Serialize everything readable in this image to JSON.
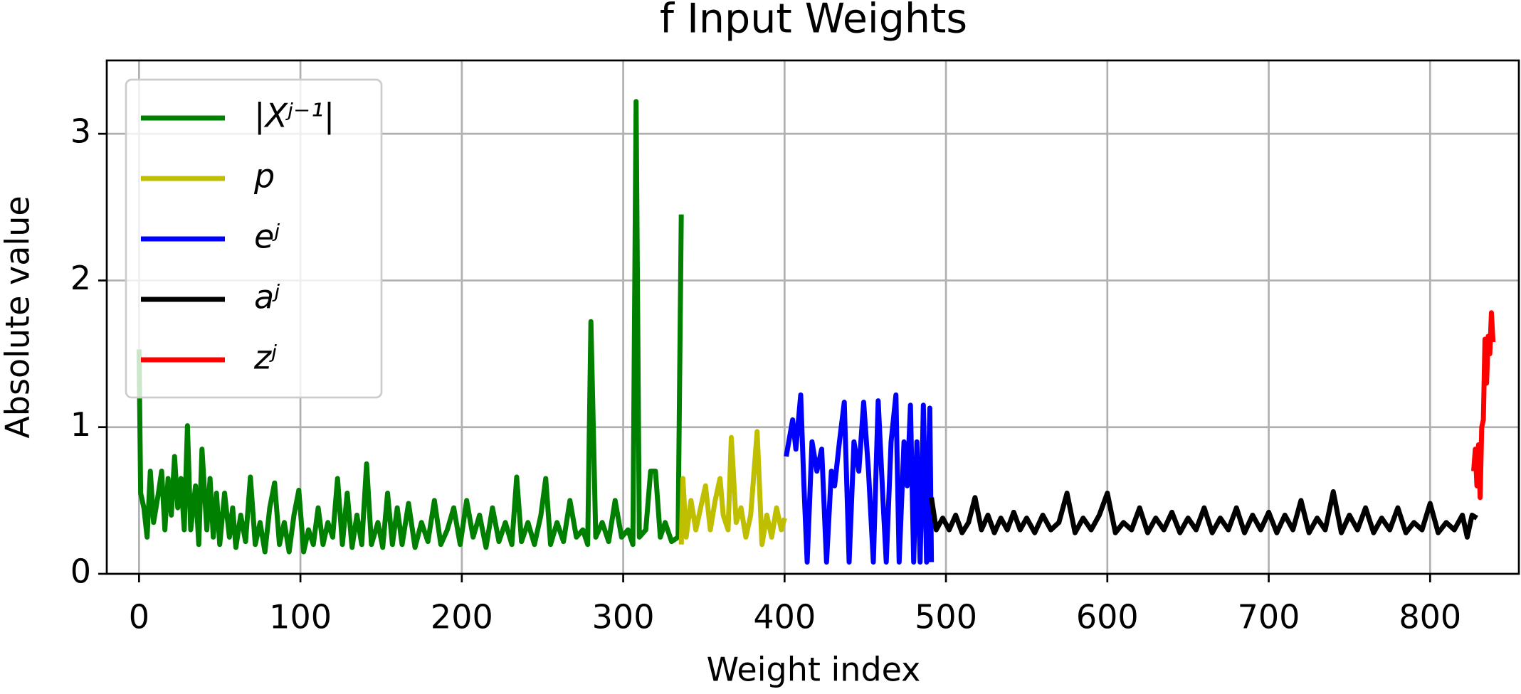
{
  "chart_data": {
    "type": "line",
    "title": "f Input Weights",
    "x_label": "Weight index",
    "y_label": "Absolute value",
    "xlim": [
      -20,
      855
    ],
    "ylim": [
      0,
      3.5
    ],
    "xticks": [
      0,
      100,
      200,
      300,
      400,
      500,
      600,
      700,
      800
    ],
    "yticks": [
      0,
      1,
      2,
      3
    ],
    "grid": true,
    "legend": "upper-left",
    "series": [
      {
        "name": "|Xʲ⁻¹|",
        "color": "#008000",
        "x": [
          0,
          1,
          3,
          5,
          7,
          9,
          12,
          14,
          16,
          18,
          20,
          22,
          24,
          26,
          28,
          30,
          32,
          35,
          37,
          39,
          42,
          44,
          46,
          48,
          50,
          53,
          56,
          58,
          60,
          63,
          66,
          69,
          72,
          75,
          78,
          81,
          84,
          87,
          90,
          93,
          96,
          99,
          102,
          105,
          108,
          111,
          114,
          117,
          120,
          123,
          126,
          129,
          132,
          135,
          138,
          141,
          144,
          148,
          151,
          154,
          157,
          160,
          163,
          167,
          171,
          175,
          179,
          183,
          187,
          191,
          195,
          199,
          203,
          207,
          211,
          215,
          219,
          223,
          227,
          231,
          234,
          237,
          241,
          245,
          249,
          252,
          255,
          259,
          263,
          267,
          271,
          275,
          278,
          280,
          283,
          287,
          291,
          295,
          299,
          303,
          306,
          308,
          310,
          314,
          317,
          320,
          323,
          326,
          330,
          334,
          336
        ],
        "values": [
          1.53,
          0.55,
          0.45,
          0.25,
          0.7,
          0.35,
          0.55,
          0.7,
          0.3,
          0.65,
          0.4,
          0.8,
          0.45,
          0.65,
          0.3,
          1.01,
          0.3,
          0.6,
          0.2,
          0.85,
          0.3,
          0.65,
          0.25,
          0.55,
          0.2,
          0.55,
          0.25,
          0.45,
          0.18,
          0.4,
          0.22,
          0.66,
          0.2,
          0.35,
          0.15,
          0.45,
          0.62,
          0.2,
          0.35,
          0.15,
          0.4,
          0.57,
          0.15,
          0.3,
          0.2,
          0.45,
          0.2,
          0.35,
          0.25,
          0.65,
          0.2,
          0.55,
          0.18,
          0.4,
          0.2,
          0.75,
          0.2,
          0.35,
          0.18,
          0.55,
          0.2,
          0.45,
          0.2,
          0.48,
          0.18,
          0.35,
          0.22,
          0.5,
          0.2,
          0.3,
          0.45,
          0.2,
          0.5,
          0.25,
          0.4,
          0.18,
          0.45,
          0.22,
          0.35,
          0.2,
          0.66,
          0.22,
          0.35,
          0.2,
          0.4,
          0.65,
          0.2,
          0.35,
          0.22,
          0.5,
          0.25,
          0.3,
          0.2,
          1.72,
          0.25,
          0.35,
          0.22,
          0.5,
          0.25,
          0.3,
          0.2,
          3.22,
          0.25,
          0.3,
          0.7,
          0.7,
          0.25,
          0.35,
          0.22,
          0.25,
          2.45
        ]
      },
      {
        "name": "p",
        "color": "#bfbf00",
        "x": [
          336,
          337,
          339,
          342,
          345,
          348,
          351,
          354,
          357,
          360,
          362,
          365,
          367,
          370,
          373,
          376,
          379,
          383,
          386,
          389,
          392,
          395,
          398,
          400
        ],
        "values": [
          0.2,
          0.65,
          0.25,
          0.5,
          0.3,
          0.45,
          0.6,
          0.3,
          0.5,
          0.65,
          0.4,
          0.3,
          0.93,
          0.35,
          0.45,
          0.25,
          0.4,
          0.97,
          0.2,
          0.4,
          0.25,
          0.45,
          0.3,
          0.38
        ]
      },
      {
        "name": "eʲ",
        "color": "#0000ff",
        "x": [
          401,
          405,
          407,
          410,
          412,
          414,
          417,
          420,
          423,
          426,
          429,
          431,
          434,
          437,
          440,
          443,
          446,
          449,
          452,
          455,
          458,
          461,
          463,
          466,
          469,
          471,
          474,
          476,
          478,
          480,
          482,
          484,
          486,
          488,
          490,
          491
        ],
        "values": [
          0.8,
          1.05,
          0.85,
          1.22,
          0.6,
          0.08,
          0.9,
          0.7,
          0.85,
          0.08,
          0.7,
          0.6,
          0.9,
          1.17,
          0.08,
          0.9,
          0.7,
          1.17,
          0.7,
          0.08,
          1.18,
          0.5,
          0.08,
          0.9,
          1.22,
          0.08,
          0.9,
          0.6,
          1.15,
          0.08,
          0.9,
          0.08,
          1.15,
          0.08,
          1.13,
          0.08
        ]
      },
      {
        "name": "aʲ",
        "color": "#000000",
        "x": [
          491,
          494,
          498,
          502,
          506,
          510,
          514,
          518,
          522,
          526,
          530,
          534,
          538,
          542,
          546,
          550,
          555,
          560,
          565,
          570,
          575,
          580,
          585,
          590,
          595,
          600,
          605,
          610,
          615,
          620,
          625,
          630,
          635,
          640,
          645,
          650,
          655,
          660,
          665,
          670,
          675,
          680,
          685,
          690,
          695,
          700,
          705,
          710,
          715,
          720,
          725,
          730,
          735,
          740,
          745,
          750,
          755,
          760,
          765,
          770,
          775,
          780,
          785,
          790,
          795,
          800,
          805,
          810,
          815,
          820,
          823,
          826,
          829
        ],
        "values": [
          0.52,
          0.3,
          0.38,
          0.3,
          0.4,
          0.28,
          0.35,
          0.52,
          0.3,
          0.4,
          0.28,
          0.38,
          0.3,
          0.42,
          0.3,
          0.38,
          0.28,
          0.4,
          0.3,
          0.35,
          0.55,
          0.28,
          0.38,
          0.3,
          0.4,
          0.55,
          0.28,
          0.35,
          0.3,
          0.45,
          0.28,
          0.38,
          0.3,
          0.42,
          0.28,
          0.38,
          0.3,
          0.45,
          0.28,
          0.38,
          0.3,
          0.45,
          0.28,
          0.4,
          0.3,
          0.42,
          0.28,
          0.4,
          0.3,
          0.5,
          0.28,
          0.38,
          0.3,
          0.56,
          0.28,
          0.4,
          0.3,
          0.45,
          0.28,
          0.38,
          0.3,
          0.45,
          0.28,
          0.35,
          0.3,
          0.48,
          0.28,
          0.35,
          0.3,
          0.4,
          0.25,
          0.4,
          0.38
        ]
      },
      {
        "name": "zʲ",
        "color": "#ff0000",
        "x": [
          827,
          828,
          829,
          830,
          831,
          832,
          833,
          834,
          835,
          836,
          837,
          838,
          839
        ],
        "values": [
          0.7,
          0.85,
          0.6,
          0.88,
          0.52,
          1.0,
          1.05,
          1.6,
          1.3,
          1.62,
          1.5,
          1.78,
          1.58
        ]
      }
    ]
  }
}
